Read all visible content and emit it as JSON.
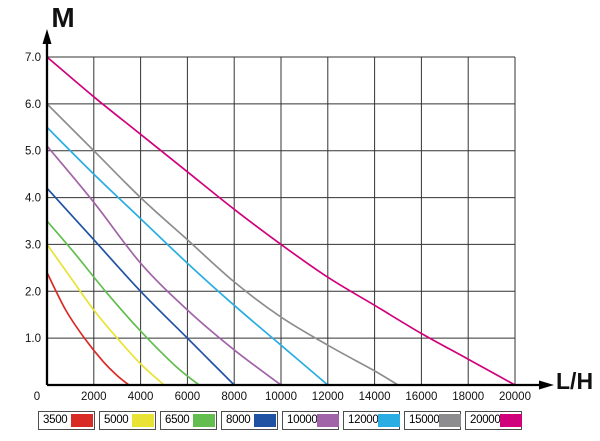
{
  "chart_data": {
    "type": "line",
    "title": "",
    "xlabel": "L/H",
    "ylabel": "M",
    "xlim": [
      0,
      20000
    ],
    "ylim": [
      0,
      7
    ],
    "grid": true,
    "legend_position": "bottom",
    "x_tick_labels": [
      "0",
      "2000",
      "4000",
      "6000",
      "8000",
      "10000",
      "12000",
      "14000",
      "16000",
      "18000",
      "20000"
    ],
    "y_tick_labels": [
      "1.0",
      "2.0",
      "3.0",
      "4.0",
      "5.0",
      "6.0",
      "7.0"
    ],
    "series": [
      {
        "name": "3500",
        "color": "#d92b26",
        "points": [
          [
            0,
            2.4
          ],
          [
            800,
            1.6
          ],
          [
            1600,
            1.0
          ],
          [
            2400,
            0.5
          ],
          [
            3000,
            0.2
          ],
          [
            3500,
            0
          ]
        ]
      },
      {
        "name": "5000",
        "color": "#e8e335",
        "points": [
          [
            0,
            3.0
          ],
          [
            1000,
            2.3
          ],
          [
            2000,
            1.6
          ],
          [
            3000,
            1.0
          ],
          [
            4000,
            0.45
          ],
          [
            5000,
            0
          ]
        ]
      },
      {
        "name": "6500",
        "color": "#62be4e",
        "points": [
          [
            0,
            3.5
          ],
          [
            1200,
            2.8
          ],
          [
            2500,
            2.0
          ],
          [
            4000,
            1.15
          ],
          [
            5500,
            0.4
          ],
          [
            6500,
            0
          ]
        ]
      },
      {
        "name": "8000",
        "color": "#1f52a3",
        "points": [
          [
            0,
            4.2
          ],
          [
            2000,
            3.1
          ],
          [
            4000,
            2.0
          ],
          [
            6000,
            1.0
          ],
          [
            7000,
            0.5
          ],
          [
            8000,
            0
          ]
        ]
      },
      {
        "name": "10000",
        "color": "#a164a8",
        "points": [
          [
            0,
            5.1
          ],
          [
            2000,
            3.9
          ],
          [
            4000,
            2.6
          ],
          [
            6000,
            1.6
          ],
          [
            8000,
            0.75
          ],
          [
            10000,
            0
          ]
        ]
      },
      {
        "name": "12000",
        "color": "#29ade3",
        "points": [
          [
            0,
            5.5
          ],
          [
            2000,
            4.5
          ],
          [
            4000,
            3.55
          ],
          [
            6000,
            2.6
          ],
          [
            8000,
            1.7
          ],
          [
            10000,
            0.85
          ],
          [
            12000,
            0
          ]
        ]
      },
      {
        "name": "15000",
        "color": "#8d8d8f",
        "points": [
          [
            0,
            6.0
          ],
          [
            2000,
            5.0
          ],
          [
            4000,
            4.0
          ],
          [
            6000,
            3.1
          ],
          [
            8000,
            2.2
          ],
          [
            10000,
            1.45
          ],
          [
            12000,
            0.85
          ],
          [
            14000,
            0.3
          ],
          [
            15000,
            0
          ]
        ]
      },
      {
        "name": "20000",
        "color": "#d1017c",
        "points": [
          [
            0,
            7.0
          ],
          [
            2000,
            6.15
          ],
          [
            4000,
            5.35
          ],
          [
            6000,
            4.55
          ],
          [
            8000,
            3.75
          ],
          [
            10000,
            3.0
          ],
          [
            12000,
            2.3
          ],
          [
            14000,
            1.7
          ],
          [
            16000,
            1.1
          ],
          [
            18000,
            0.55
          ],
          [
            20000,
            0
          ]
        ]
      }
    ]
  },
  "colors": {
    "axis": "#000000",
    "grid": "#333333",
    "tick_text": "#111111",
    "legend_border": "#4d4d4d"
  }
}
